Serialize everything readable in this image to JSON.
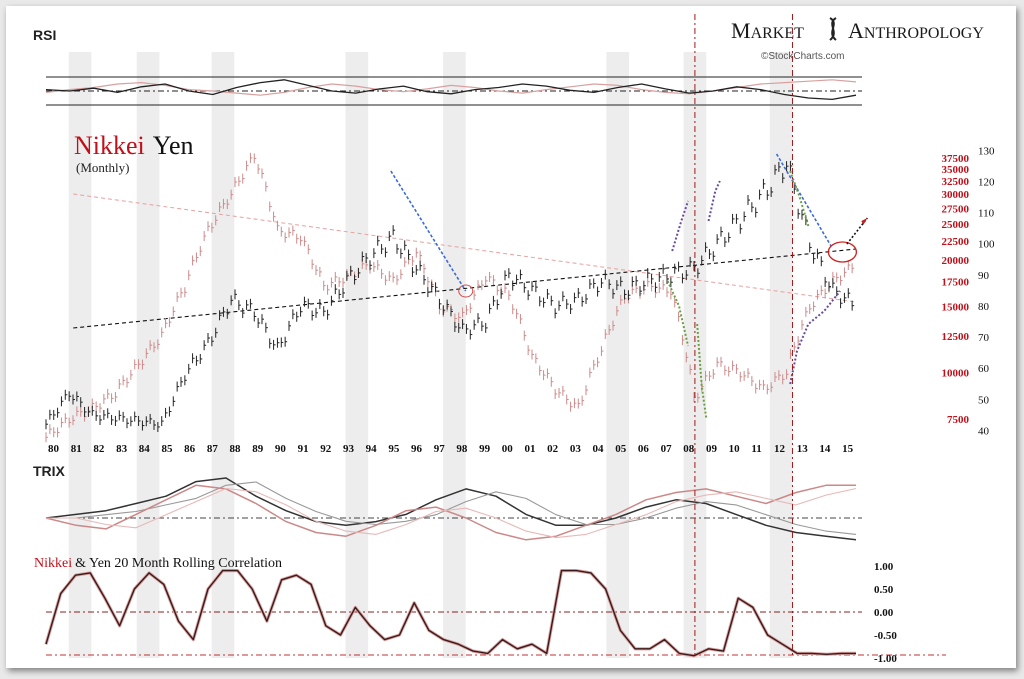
{
  "branding": {
    "word1_cap": "M",
    "word1_rest": "ARKET",
    "word2_cap": "A",
    "word2_rest": "NTHROPOLOGY",
    "credit": "©StockCharts.com",
    "logo_icon": "dna-helix-icon"
  },
  "chart_data": [
    {
      "panel": "rsi",
      "type": "line",
      "title": "RSI",
      "series": [
        {
          "name": "Nikkei",
          "color": "#222222",
          "values": [
            52,
            50,
            54,
            48,
            56,
            60,
            50,
            45,
            55,
            62,
            66,
            58,
            50,
            47,
            53,
            57,
            49,
            46,
            52,
            55,
            60,
            57,
            51,
            48,
            55,
            60,
            53,
            47,
            50,
            56,
            52,
            45,
            40,
            38,
            44
          ]
        },
        {
          "name": "Yen",
          "color": "#d9a0a0",
          "values": [
            48,
            52,
            55,
            60,
            62,
            58,
            52,
            50,
            47,
            44,
            48,
            55,
            60,
            57,
            52,
            49,
            53,
            58,
            55,
            50,
            47,
            52,
            56,
            60,
            58,
            52,
            48,
            46,
            50,
            55,
            60,
            62,
            64,
            66,
            63
          ]
        }
      ],
      "reference_lines": [
        70,
        50,
        30
      ],
      "ylim": [
        20,
        80
      ]
    },
    {
      "panel": "price",
      "type": "line",
      "title_part1": "Nikkei",
      "title_part2": "Yen",
      "subtitle": "(Monthly)",
      "x_tick_labels": [
        "80",
        "81",
        "82",
        "83",
        "84",
        "85",
        "86",
        "87",
        "88",
        "89",
        "90",
        "91",
        "92",
        "93",
        "94",
        "95",
        "96",
        "97",
        "98",
        "99",
        "00",
        "01",
        "02",
        "03",
        "04",
        "05",
        "06",
        "07",
        "08",
        "09",
        "10",
        "11",
        "12",
        "13",
        "14",
        "15"
      ],
      "x": [
        1980,
        1981,
        1982,
        1983,
        1984,
        1985,
        1986,
        1987,
        1988,
        1989,
        1990,
        1991,
        1992,
        1993,
        1994,
        1995,
        1996,
        1997,
        1998,
        1999,
        2000,
        2001,
        2002,
        2003,
        2004,
        2005,
        2006,
        2007,
        2008,
        2009,
        2010,
        2011,
        2012,
        2013,
        2014,
        2015
      ],
      "nikkei_axis_ticks": [
        "37500",
        "35000",
        "32500",
        "30000",
        "27500",
        "25000",
        "22500",
        "20000",
        "17500",
        "15000",
        "12500",
        "10000",
        "7500"
      ],
      "yen_axis_ticks": [
        "130",
        "120",
        "110",
        "100",
        "90",
        "80",
        "70",
        "60",
        "50",
        "40"
      ],
      "series": [
        {
          "name": "Yen",
          "color": "#222222",
          "values": [
            42,
            52,
            45,
            44,
            43,
            42,
            58,
            68,
            82,
            78,
            66,
            80,
            78,
            88,
            96,
            102,
            92,
            82,
            72,
            75,
            90,
            85,
            80,
            82,
            88,
            85,
            88,
            90,
            92,
            100,
            108,
            116,
            126,
            100,
            85,
            80
          ]
        },
        {
          "name": "Nikkei",
          "color": "#cc8a8a",
          "values": [
            6700,
            7500,
            8000,
            8800,
            10500,
            12500,
            17000,
            24000,
            30000,
            38000,
            24000,
            23000,
            17000,
            18000,
            19500,
            17500,
            21000,
            15000,
            14000,
            18000,
            16000,
            11000,
            9000,
            8000,
            11500,
            16000,
            17000,
            16500,
            8500,
            10500,
            10000,
            9000,
            10000,
            15000,
            17500,
            19500
          ]
        }
      ],
      "marker_years": [
        2008.6,
        2012.9
      ]
    },
    {
      "panel": "trix",
      "type": "line",
      "title": "TRIX",
      "series": [
        {
          "name": "Nikkei",
          "color": "#333333",
          "values": [
            0.0,
            0.1,
            0.2,
            0.4,
            0.6,
            1.0,
            1.1,
            0.6,
            0.2,
            -0.1,
            -0.2,
            -0.1,
            0.1,
            0.5,
            0.8,
            0.6,
            0.1,
            -0.2,
            -0.2,
            0.0,
            0.3,
            0.5,
            0.4,
            0.1,
            -0.2,
            -0.4,
            -0.5,
            -0.6
          ]
        },
        {
          "name": "Yen",
          "color": "#cc8888",
          "values": [
            0.0,
            -0.2,
            -0.3,
            0.1,
            0.5,
            0.9,
            0.8,
            0.4,
            -0.1,
            -0.4,
            -0.5,
            -0.2,
            0.2,
            0.3,
            0.0,
            -0.4,
            -0.6,
            -0.5,
            -0.2,
            0.1,
            0.5,
            0.7,
            0.8,
            0.6,
            0.4,
            0.7,
            0.9,
            0.9
          ]
        }
      ],
      "ylim": [
        -1,
        1.2
      ]
    },
    {
      "panel": "correlation",
      "type": "line",
      "title_part1": "Nikkei",
      "title_part2": "& Yen 20 Month Rolling Correlation",
      "y_tick_labels": [
        "1.00",
        "0.50",
        "0.00",
        "-0.50",
        "-1.00"
      ],
      "ylim": [
        -1,
        1
      ],
      "series": [
        {
          "name": "Correlation",
          "color": "#3a1a1a",
          "values": [
            -0.7,
            0.4,
            0.8,
            0.85,
            0.3,
            -0.3,
            0.5,
            0.85,
            0.6,
            -0.2,
            -0.6,
            0.5,
            0.9,
            0.9,
            0.5,
            -0.2,
            0.7,
            0.8,
            0.6,
            -0.3,
            -0.5,
            0.1,
            -0.3,
            -0.6,
            -0.5,
            0.2,
            -0.4,
            -0.6,
            -0.7,
            -0.85,
            -0.9,
            -0.6,
            -0.8,
            -0.7,
            -0.9,
            0.9,
            0.9,
            0.85,
            0.5,
            -0.4,
            -0.8,
            -0.8,
            -0.6,
            -0.9,
            -0.95,
            -0.8,
            -0.85,
            0.3,
            0.1,
            -0.5,
            -0.7,
            -0.9,
            -0.9,
            -0.92,
            -0.9,
            -0.9
          ]
        }
      ]
    }
  ]
}
